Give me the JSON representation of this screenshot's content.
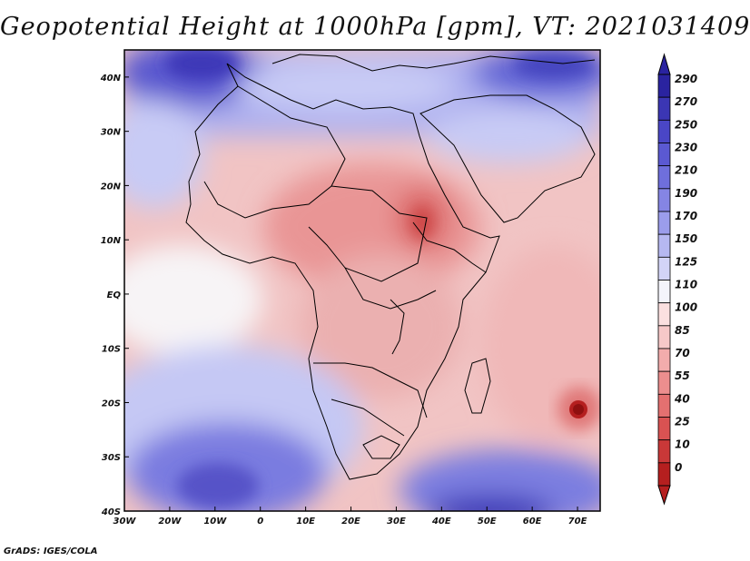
{
  "title": "Geopotential Height at 1000hPa [gpm], VT: 2021031409",
  "credit": "GrADS: IGES/COLA",
  "chart_data": {
    "type": "heatmap",
    "variable": "Geopotential Height",
    "level": "1000hPa",
    "units": "gpm",
    "valid_time": "2021031409",
    "lon_range": [
      -30,
      75
    ],
    "lat_range": [
      -40,
      45
    ],
    "x_ticks": [
      "30W",
      "20W",
      "10W",
      "0",
      "10E",
      "20E",
      "30E",
      "40E",
      "50E",
      "60E",
      "70E"
    ],
    "x_tick_values": [
      -30,
      -20,
      -10,
      0,
      10,
      20,
      30,
      40,
      50,
      60,
      70
    ],
    "y_ticks": [
      "40N",
      "30N",
      "20N",
      "10N",
      "EQ",
      "10S",
      "20S",
      "30S",
      "40S"
    ],
    "y_tick_values": [
      40,
      30,
      20,
      10,
      0,
      -10,
      -20,
      -30,
      -40
    ],
    "colorbar": {
      "levels": [
        290,
        270,
        250,
        230,
        210,
        190,
        170,
        150,
        125,
        110,
        100,
        85,
        70,
        55,
        40,
        25,
        10,
        0
      ],
      "colors": [
        "#2a23a0",
        "#3b36b4",
        "#4a46c6",
        "#5b59d2",
        "#6f6fdc",
        "#8585e4",
        "#9b9deb",
        "#b6b8f1",
        "#d3d4f7",
        "#f4f4fb",
        "#fbe0e0",
        "#f6c8c8",
        "#f2acac",
        "#ec8e8e",
        "#e47070",
        "#d95252",
        "#c93838",
        "#b51f1f"
      ]
    },
    "features": [
      {
        "label": "high",
        "lon": -15,
        "lat": 42,
        "value": 250
      },
      {
        "label": "high",
        "lon": -10,
        "lat": -35,
        "value": 230
      },
      {
        "label": "high",
        "lon": 50,
        "lat": -38,
        "value": 230
      },
      {
        "label": "low",
        "lon": 35,
        "lat": 13,
        "value": 70
      },
      {
        "label": "low",
        "lon": 70,
        "lat": -22,
        "value": 25
      }
    ]
  }
}
